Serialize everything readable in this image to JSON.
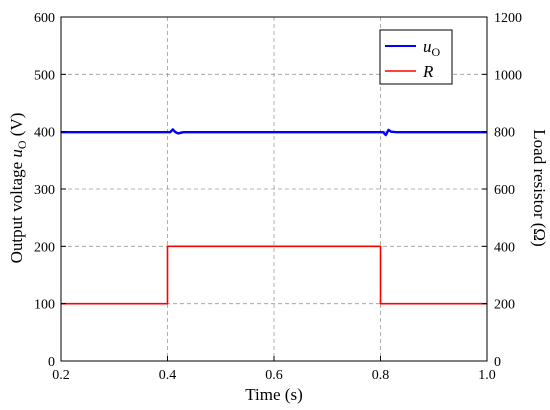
{
  "chart_data": {
    "type": "line",
    "x_axis": {
      "label": "Time (s)",
      "range": [
        0.2,
        1.0
      ],
      "ticks": [
        "0.2",
        "0.4",
        "0.6",
        "0.8",
        "1.0"
      ]
    },
    "y_axis_left": {
      "label_prefix": "Output voltage ",
      "label_symbol": "u",
      "label_sub": "O",
      "label_unit": " (V)",
      "range": [
        0,
        600
      ],
      "ticks": [
        "0",
        "100",
        "200",
        "300",
        "400",
        "500",
        "600"
      ]
    },
    "y_axis_right": {
      "label": "Load resistor (Ω)",
      "range": [
        0,
        1200
      ],
      "ticks": [
        "0",
        "200",
        "400",
        "600",
        "800",
        "1000",
        "1200"
      ]
    },
    "grid": true,
    "grid_style": "dashed",
    "legend_position": "top-right",
    "series": [
      {
        "name": "u",
        "name_sub": "O",
        "axis": "left",
        "color": "#0000ff",
        "x": [
          0.2,
          0.4,
          0.405,
          0.41,
          0.415,
          0.42,
          0.43,
          0.8,
          0.805,
          0.81,
          0.815,
          0.82,
          0.83,
          1.0
        ],
        "y": [
          399,
          399,
          399,
          404,
          399,
          397,
          399,
          399,
          399,
          394,
          403,
          400,
          399,
          399
        ]
      },
      {
        "name": "R",
        "axis": "right",
        "color": "#ff0000",
        "x": [
          0.2,
          0.4,
          0.4,
          0.8,
          0.8,
          1.0
        ],
        "y": [
          200,
          200,
          400,
          400,
          200,
          200
        ]
      }
    ]
  }
}
